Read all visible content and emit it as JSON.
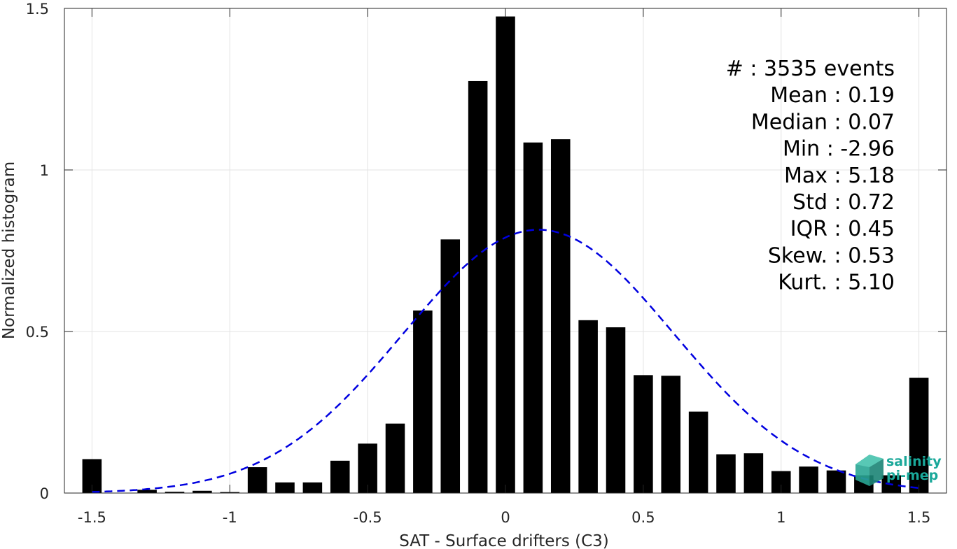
{
  "chart_data": {
    "type": "bar",
    "title": "",
    "xlabel": "SAT - Surface drifters (C3)",
    "ylabel": "Normalized histogram",
    "xlim": [
      -1.6,
      1.6
    ],
    "ylim": [
      0,
      1.5
    ],
    "grid": true,
    "x_ticks": [
      -1.5,
      -1,
      -0.5,
      0,
      0.5,
      1,
      1.5
    ],
    "x_tick_labels": [
      "-1.5",
      "-1",
      "-0.5",
      "0",
      "0.5",
      "1",
      "1.5"
    ],
    "y_ticks": [
      0,
      0.5,
      1,
      1.5
    ],
    "y_tick_labels": [
      "0",
      "0.5",
      "1",
      "1.5"
    ],
    "bin_width": 0.1,
    "bar_width": 0.07,
    "x": [
      -1.5,
      -1.4,
      -1.3,
      -1.2,
      -1.1,
      -1.0,
      -0.9,
      -0.8,
      -0.7,
      -0.6,
      -0.5,
      -0.4,
      -0.3,
      -0.2,
      -0.1,
      0.0,
      0.1,
      0.2,
      0.3,
      0.4,
      0.5,
      0.6,
      0.7,
      0.8,
      0.9,
      1.0,
      1.1,
      1.2,
      1.3,
      1.4,
      1.5
    ],
    "values": [
      0.105,
      0.0,
      0.01,
      0.004,
      0.007,
      0.003,
      0.08,
      0.033,
      0.033,
      0.1,
      0.153,
      0.215,
      0.565,
      0.785,
      1.275,
      1.475,
      1.085,
      1.095,
      0.535,
      0.513,
      0.365,
      0.363,
      0.252,
      0.12,
      0.123,
      0.068,
      0.082,
      0.07,
      0.055,
      0.055,
      0.357
    ],
    "bar_color": "#000000",
    "fit_curve": {
      "style": "dashed",
      "color": "#0000e0",
      "mean": 0.12,
      "sigma": 0.49,
      "peak": 0.815,
      "x_range": [
        -1.5,
        1.5
      ]
    },
    "stats_lines": [
      "#  : 3535 events",
      "Mean : 0.19",
      "Median : 0.07",
      "Min : -2.96",
      "Max : 5.18",
      "Std : 0.72",
      "IQR : 0.45",
      "Skew. : 0.53",
      "Kurt. : 5.10"
    ],
    "stats_placement": "top-right"
  },
  "logo": {
    "line1": "salinity",
    "line2": "pi-mep",
    "color": "#1aa89a"
  }
}
